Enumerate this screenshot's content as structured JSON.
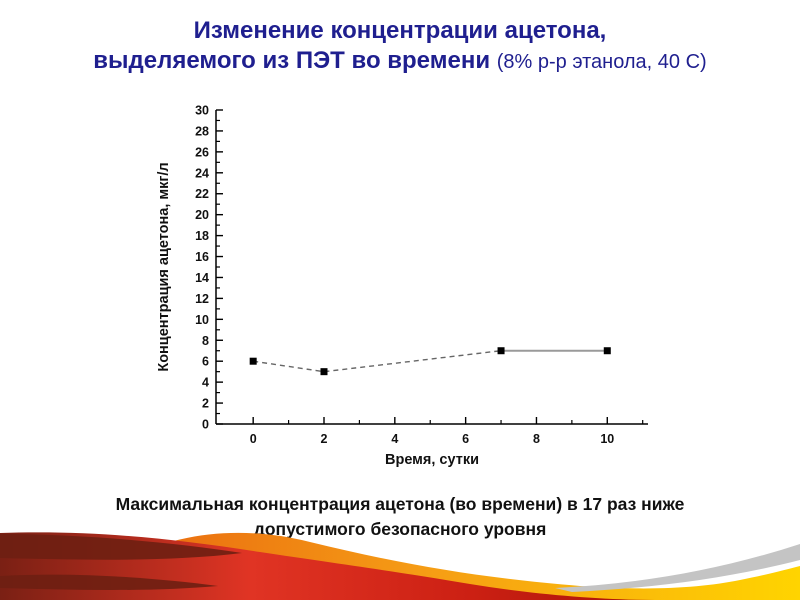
{
  "slide": {
    "title": {
      "line1": "Изменение концентрации ацетона,",
      "line2": "выделяемого из ПЭТ во времени",
      "line2_note": "(8% р-р этанола, 40 С)",
      "color": "#1f1f8f"
    },
    "caption": {
      "line1": "Максимальная концентрация ацетона (во времени) в 17 раз ниже",
      "line2": "допустимого безопасного уровня"
    }
  },
  "chart_data": {
    "type": "line",
    "title": "",
    "xlabel": "Время, сутки",
    "ylabel": "Концентрация ацетона, мкг/л",
    "x": [
      0,
      2,
      7,
      10
    ],
    "y": [
      6,
      5,
      7,
      7
    ],
    "xlim": [
      -1.05,
      11.15
    ],
    "ylim": [
      0,
      30
    ],
    "x_major_ticks": [
      0,
      2,
      4,
      6,
      8,
      10
    ],
    "x_minor_ticks": [
      1,
      3,
      5,
      7,
      9,
      11
    ],
    "y_major_step": 2,
    "y_minor_step": 1,
    "grid": false,
    "legend": null,
    "marker": "square",
    "marker_color": "#000000",
    "segments": [
      {
        "points_idx": [
          0,
          1,
          2
        ],
        "style": "dashed"
      },
      {
        "points_idx": [
          2,
          3
        ],
        "style": "solid"
      }
    ],
    "line_color_dashed": "#666666",
    "line_color_solid": "#9a9a9a",
    "axis_color": "#000000"
  },
  "decoration": {
    "footer_colors": {
      "dark_red": "#6e1f12",
      "red": "#d92a18",
      "orange": "#ef7412",
      "yellow": "#ffd400",
      "gray": "#c4c4c4"
    }
  }
}
